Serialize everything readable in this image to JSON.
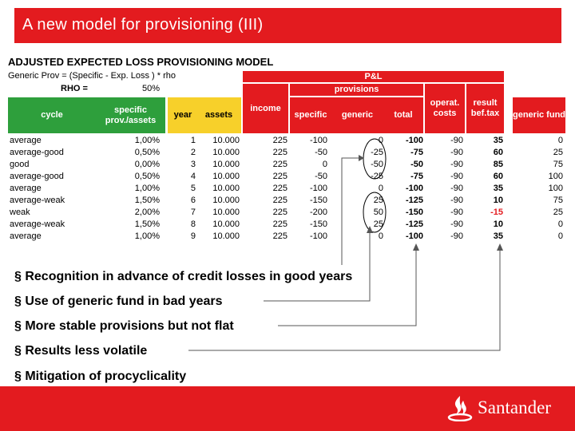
{
  "title": "A new model for provisioning (III)",
  "subtitle": "ADJUSTED  EXPECTED LOSS PROVISIONING MODEL",
  "formula": "Generic Prov = (Specific - Exp. Loss ) * rho",
  "rho_label": "RHO  =",
  "rho_value": "50%",
  "headers": {
    "pl": "P&L",
    "provisions": "provisions",
    "cycle": "cycle",
    "specific_prov_assets": "specific prov./assets",
    "year": "year",
    "assets": "assets",
    "income": "income",
    "specific": "specific",
    "generic": "generic",
    "total": "total",
    "operat_costs": "operat. costs",
    "result_bef_tax": "result bef.tax",
    "generic_fund": "generic fund"
  },
  "rows": [
    {
      "cycle": "average",
      "pct": "1,00%",
      "year": "1",
      "assets": "10.000",
      "income": "225",
      "specific": "-100",
      "generic": "0",
      "total": "-100",
      "costs": "-90",
      "result": "35",
      "fund": "0"
    },
    {
      "cycle": "average-good",
      "pct": "0,50%",
      "year": "2",
      "assets": "10.000",
      "income": "225",
      "specific": "-50",
      "generic": "-25",
      "total": "-75",
      "costs": "-90",
      "result": "60",
      "fund": "25"
    },
    {
      "cycle": "good",
      "pct": "0,00%",
      "year": "3",
      "assets": "10.000",
      "income": "225",
      "specific": "0",
      "generic": "-50",
      "total": "-50",
      "costs": "-90",
      "result": "85",
      "fund": "75"
    },
    {
      "cycle": "average-good",
      "pct": "0,50%",
      "year": "4",
      "assets": "10.000",
      "income": "225",
      "specific": "-50",
      "generic": "-25",
      "total": "-75",
      "costs": "-90",
      "result": "60",
      "fund": "100"
    },
    {
      "cycle": "average",
      "pct": "1,00%",
      "year": "5",
      "assets": "10.000",
      "income": "225",
      "specific": "-100",
      "generic": "0",
      "total": "-100",
      "costs": "-90",
      "result": "35",
      "fund": "100"
    },
    {
      "cycle": "average-weak",
      "pct": "1,50%",
      "year": "6",
      "assets": "10.000",
      "income": "225",
      "specific": "-150",
      "generic": "25",
      "total": "-125",
      "costs": "-90",
      "result": "10",
      "fund": "75"
    },
    {
      "cycle": "weak",
      "pct": "2,00%",
      "year": "7",
      "assets": "10.000",
      "income": "225",
      "specific": "-200",
      "generic": "50",
      "total": "-150",
      "costs": "-90",
      "result": "-15",
      "fund": "25"
    },
    {
      "cycle": "average-weak",
      "pct": "1,50%",
      "year": "8",
      "assets": "10.000",
      "income": "225",
      "specific": "-150",
      "generic": "25",
      "total": "-125",
      "costs": "-90",
      "result": "10",
      "fund": "0"
    },
    {
      "cycle": "average",
      "pct": "1,00%",
      "year": "9",
      "assets": "10.000",
      "income": "225",
      "specific": "-100",
      "generic": "0",
      "total": "-100",
      "costs": "-90",
      "result": "35",
      "fund": "0"
    }
  ],
  "bullets": [
    "§ Recognition in advance of credit losses in good years",
    "§ Use of generic fund in bad years",
    "§ More stable provisions but not flat",
    "§ Results less volatile",
    "§ Mitigation of procyclicality"
  ],
  "brand": "Santander",
  "colors": {
    "red": "#e31b1f",
    "green": "#2e9f3c",
    "yellow": "#f7d02a"
  }
}
